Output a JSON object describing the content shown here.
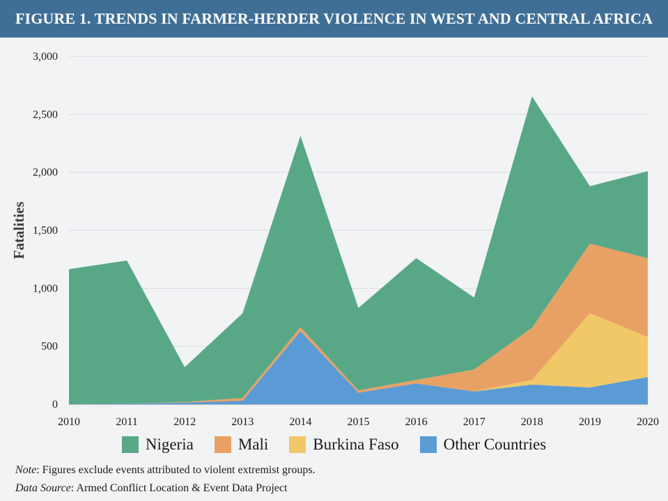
{
  "header": {
    "title": "FIGURE 1. TRENDS IN FARMER-HERDER VIOLENCE IN WEST AND CENTRAL AFRICA"
  },
  "chart_data": {
    "type": "area",
    "stacked": true,
    "title": "FIGURE 1. TRENDS IN FARMER-HERDER VIOLENCE IN WEST AND CENTRAL AFRICA",
    "xlabel": "",
    "ylabel": "Fatalities",
    "x": [
      "2010",
      "2011",
      "2012",
      "2013",
      "2014",
      "2015",
      "2016",
      "2017",
      "2018",
      "2019",
      "2020"
    ],
    "ylim": [
      0,
      3000
    ],
    "yticks": [
      0,
      500,
      1000,
      1500,
      2000,
      2500,
      3000
    ],
    "ytick_labels": [
      "0",
      "500",
      "1,000",
      "1,500",
      "2,000",
      "2,500",
      "3,000"
    ],
    "grid": true,
    "legend_position": "bottom",
    "series": [
      {
        "name": "Other Countries",
        "color": "#5b9bd5",
        "values": [
          0,
          5,
          15,
          30,
          630,
          100,
          180,
          110,
          170,
          145,
          235
        ]
      },
      {
        "name": "Burkina Faso",
        "color": "#f0c868",
        "values": [
          0,
          0,
          0,
          0,
          0,
          0,
          0,
          0,
          40,
          640,
          345
        ]
      },
      {
        "name": "Mali",
        "color": "#e8a164",
        "values": [
          0,
          0,
          5,
          25,
          35,
          20,
          30,
          190,
          450,
          600,
          680
        ]
      },
      {
        "name": "Nigeria",
        "color": "#58a887",
        "values": [
          1165,
          1235,
          300,
          730,
          1650,
          710,
          1050,
          620,
          1995,
          495,
          750
        ]
      }
    ],
    "legend_order": [
      "Nigeria",
      "Mali",
      "Burkina Faso",
      "Other Countries"
    ]
  },
  "legend": [
    {
      "label": "Nigeria",
      "color": "#58a887"
    },
    {
      "label": "Mali",
      "color": "#e8a164"
    },
    {
      "label": "Burkina Faso",
      "color": "#f0c868"
    },
    {
      "label": "Other Countries",
      "color": "#5b9bd5"
    }
  ],
  "notes": {
    "note_prefix": "Note",
    "note_text": ": Figures exclude events attributed to violent extremist groups.",
    "source_prefix": "Data Source",
    "source_text": ": Armed Conflict Location & Event Data Project"
  }
}
